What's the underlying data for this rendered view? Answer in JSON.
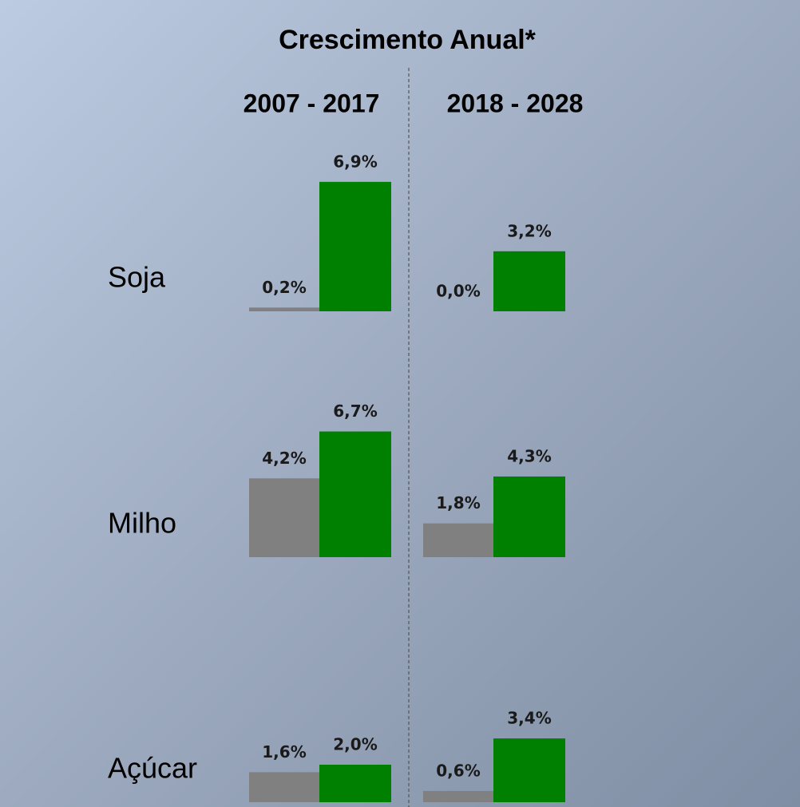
{
  "chart_data": {
    "type": "bar",
    "title": "Crescimento Anual*",
    "categories": [
      "Soja",
      "Milho",
      "Açúcar"
    ],
    "panels": [
      {
        "title": "2007 - 2017",
        "series": [
          {
            "color": "#808080",
            "values": [
              0.2,
              4.2,
              1.6
            ],
            "value_labels": [
              "0,2%",
              "4,2%",
              "1,6%"
            ]
          },
          {
            "color": "#008000",
            "values": [
              6.9,
              6.7,
              2.0
            ],
            "value_labels": [
              "6,9%",
              "6,7%",
              "2,0%"
            ]
          }
        ]
      },
      {
        "title": "2018 - 2028",
        "series": [
          {
            "color": "#808080",
            "values": [
              0.0,
              1.8,
              0.6
            ],
            "value_labels": [
              "0,0%",
              "1,8%",
              "0,6%"
            ]
          },
          {
            "color": "#008000",
            "values": [
              3.2,
              4.3,
              3.4
            ],
            "value_labels": [
              "3,2%",
              "4,3%",
              "3,4%"
            ]
          }
        ]
      }
    ]
  }
}
